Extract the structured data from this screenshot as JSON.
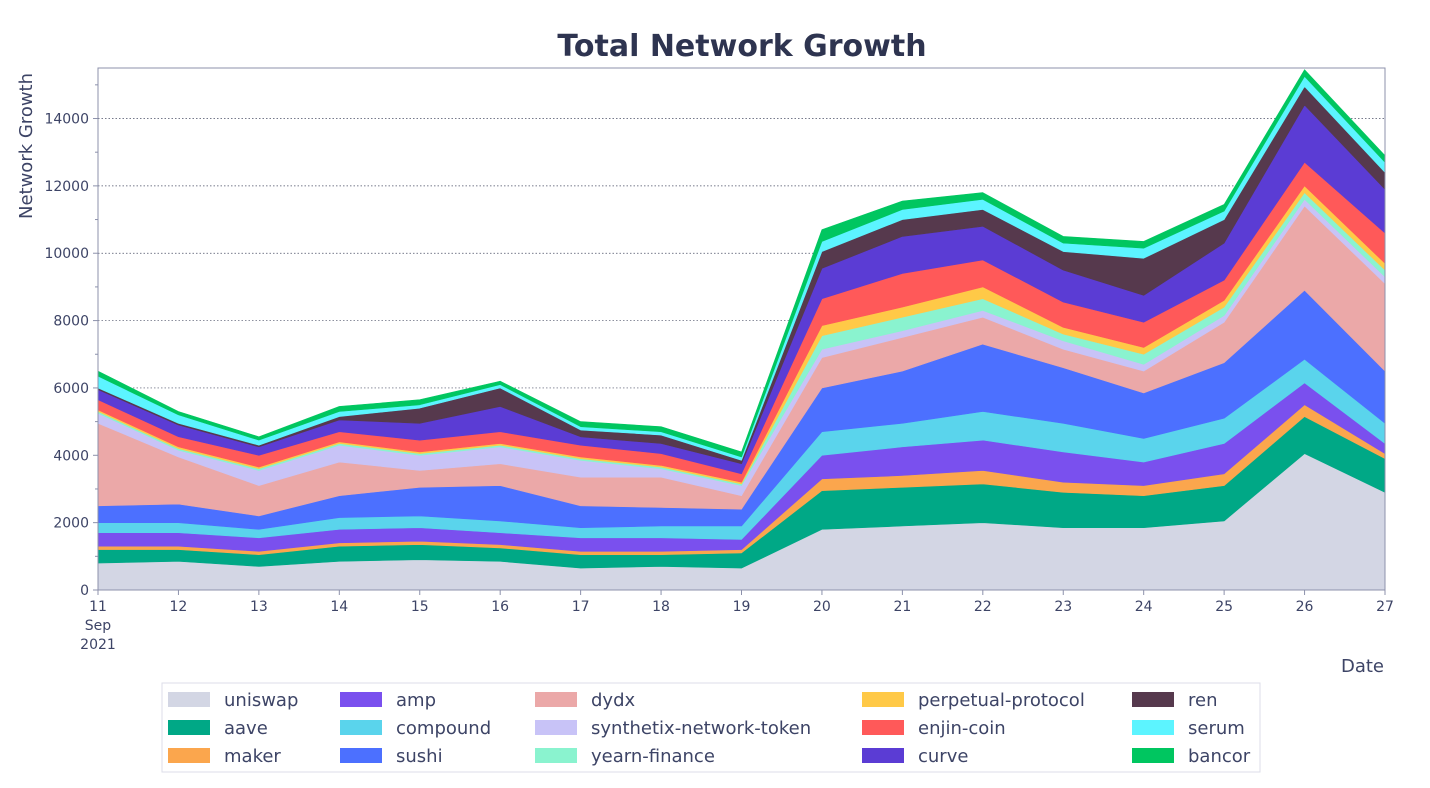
{
  "chart_data": {
    "type": "area",
    "stacked": true,
    "title": "Total Network Growth",
    "xlabel": "Date",
    "ylabel": "Network Growth",
    "x": [
      "11",
      "12",
      "13",
      "14",
      "15",
      "16",
      "17",
      "18",
      "19",
      "20",
      "21",
      "22",
      "23",
      "24",
      "25",
      "26",
      "27"
    ],
    "x_first_sublabels": [
      "Sep",
      "2021"
    ],
    "ylim": [
      0,
      15500
    ],
    "yticks": [
      "0",
      "2000",
      "4000",
      "6000",
      "8000",
      "10000",
      "12000",
      "14000"
    ],
    "grid": "horizontal dotted",
    "legend_position": "bottom",
    "series": [
      {
        "name": "uniswap",
        "color": "#d3d6e4",
        "values": [
          800,
          850,
          700,
          850,
          900,
          850,
          650,
          700,
          650,
          1800,
          1900,
          2000,
          1850,
          1850,
          2050,
          4050,
          2900
        ]
      },
      {
        "name": "aave",
        "color": "#00a886",
        "values": [
          400,
          350,
          350,
          450,
          450,
          400,
          400,
          350,
          450,
          1150,
          1150,
          1150,
          1050,
          950,
          1050,
          1100,
          1000
        ]
      },
      {
        "name": "maker",
        "color": "#fba64d",
        "values": [
          100,
          100,
          100,
          100,
          100,
          100,
          100,
          100,
          100,
          350,
          350,
          400,
          300,
          300,
          350,
          350,
          150
        ]
      },
      {
        "name": "amp",
        "color": "#7a50ee",
        "values": [
          400,
          400,
          400,
          400,
          400,
          350,
          400,
          400,
          300,
          700,
          850,
          900,
          900,
          700,
          900,
          650,
          300
        ]
      },
      {
        "name": "compound",
        "color": "#5ad4ec",
        "values": [
          300,
          300,
          250,
          350,
          350,
          350,
          300,
          350,
          400,
          700,
          700,
          850,
          850,
          700,
          750,
          700,
          600
        ]
      },
      {
        "name": "sushi",
        "color": "#4c70ff",
        "values": [
          500,
          550,
          400,
          650,
          850,
          1050,
          650,
          550,
          500,
          1300,
          1550,
          2000,
          1650,
          1350,
          1650,
          2050,
          1550
        ]
      },
      {
        "name": "dydx",
        "color": "#eba8a8",
        "values": [
          2450,
          1400,
          900,
          1000,
          500,
          650,
          850,
          900,
          400,
          900,
          1000,
          800,
          550,
          650,
          1200,
          2500,
          2600
        ]
      },
      {
        "name": "synthetix-network-token",
        "color": "#c8c3f7",
        "values": [
          300,
          200,
          450,
          500,
          450,
          500,
          500,
          250,
          300,
          250,
          200,
          200,
          250,
          200,
          200,
          200,
          200
        ]
      },
      {
        "name": "yearn-finance",
        "color": "#8af3cf",
        "values": [
          50,
          50,
          50,
          50,
          50,
          50,
          50,
          50,
          50,
          400,
          400,
          350,
          200,
          300,
          250,
          200,
          200
        ]
      },
      {
        "name": "perpetual-protocol",
        "color": "#ffc947",
        "values": [
          50,
          50,
          50,
          50,
          50,
          50,
          50,
          50,
          50,
          300,
          300,
          350,
          200,
          200,
          200,
          200,
          200
        ]
      },
      {
        "name": "enjin-coin",
        "color": "#ff5959",
        "values": [
          300,
          300,
          350,
          300,
          350,
          350,
          350,
          350,
          250,
          800,
          1000,
          800,
          750,
          750,
          600,
          700,
          900
        ]
      },
      {
        "name": "curve",
        "color": "#5b3cd4",
        "values": [
          300,
          350,
          250,
          350,
          500,
          750,
          250,
          300,
          300,
          900,
          1100,
          1000,
          950,
          800,
          1100,
          1700,
          1300
        ]
      },
      {
        "name": "ren",
        "color": "#56394d",
        "values": [
          50,
          50,
          50,
          100,
          450,
          550,
          200,
          250,
          100,
          500,
          500,
          500,
          550,
          1100,
          700,
          550,
          500
        ]
      },
      {
        "name": "serum",
        "color": "#5cf4ff",
        "values": [
          350,
          250,
          150,
          150,
          100,
          100,
          100,
          100,
          100,
          300,
          300,
          300,
          250,
          300,
          250,
          300,
          300
        ]
      },
      {
        "name": "bancor",
        "color": "#00c660",
        "values": [
          150,
          100,
          100,
          150,
          150,
          100,
          150,
          150,
          150,
          350,
          250,
          200,
          200,
          200,
          200,
          200,
          200
        ]
      }
    ]
  }
}
